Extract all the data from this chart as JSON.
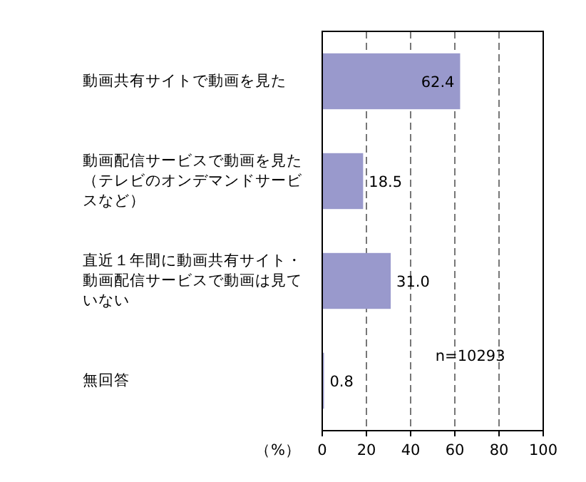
{
  "chart_data": {
    "type": "bar",
    "orientation": "horizontal",
    "categories": [
      "動画共有サイトで動画を見た",
      "動画配信サービスで動画を見た（テレビのオンデマンドサービスなど）",
      "直近１年間に動画共有サイト・動画配信サービスで動画は見ていない",
      "無回答"
    ],
    "values": [
      62.4,
      18.5,
      31.0,
      0.8
    ],
    "value_labels": [
      "62.4",
      "18.5",
      "31.0",
      "0.8"
    ],
    "color": "#9999cc",
    "xlim": [
      0,
      100
    ],
    "xticks": [
      0,
      20,
      40,
      60,
      80,
      100
    ],
    "xlabel": "（%）",
    "grid": "x",
    "annotations": [
      "n=10293"
    ]
  }
}
